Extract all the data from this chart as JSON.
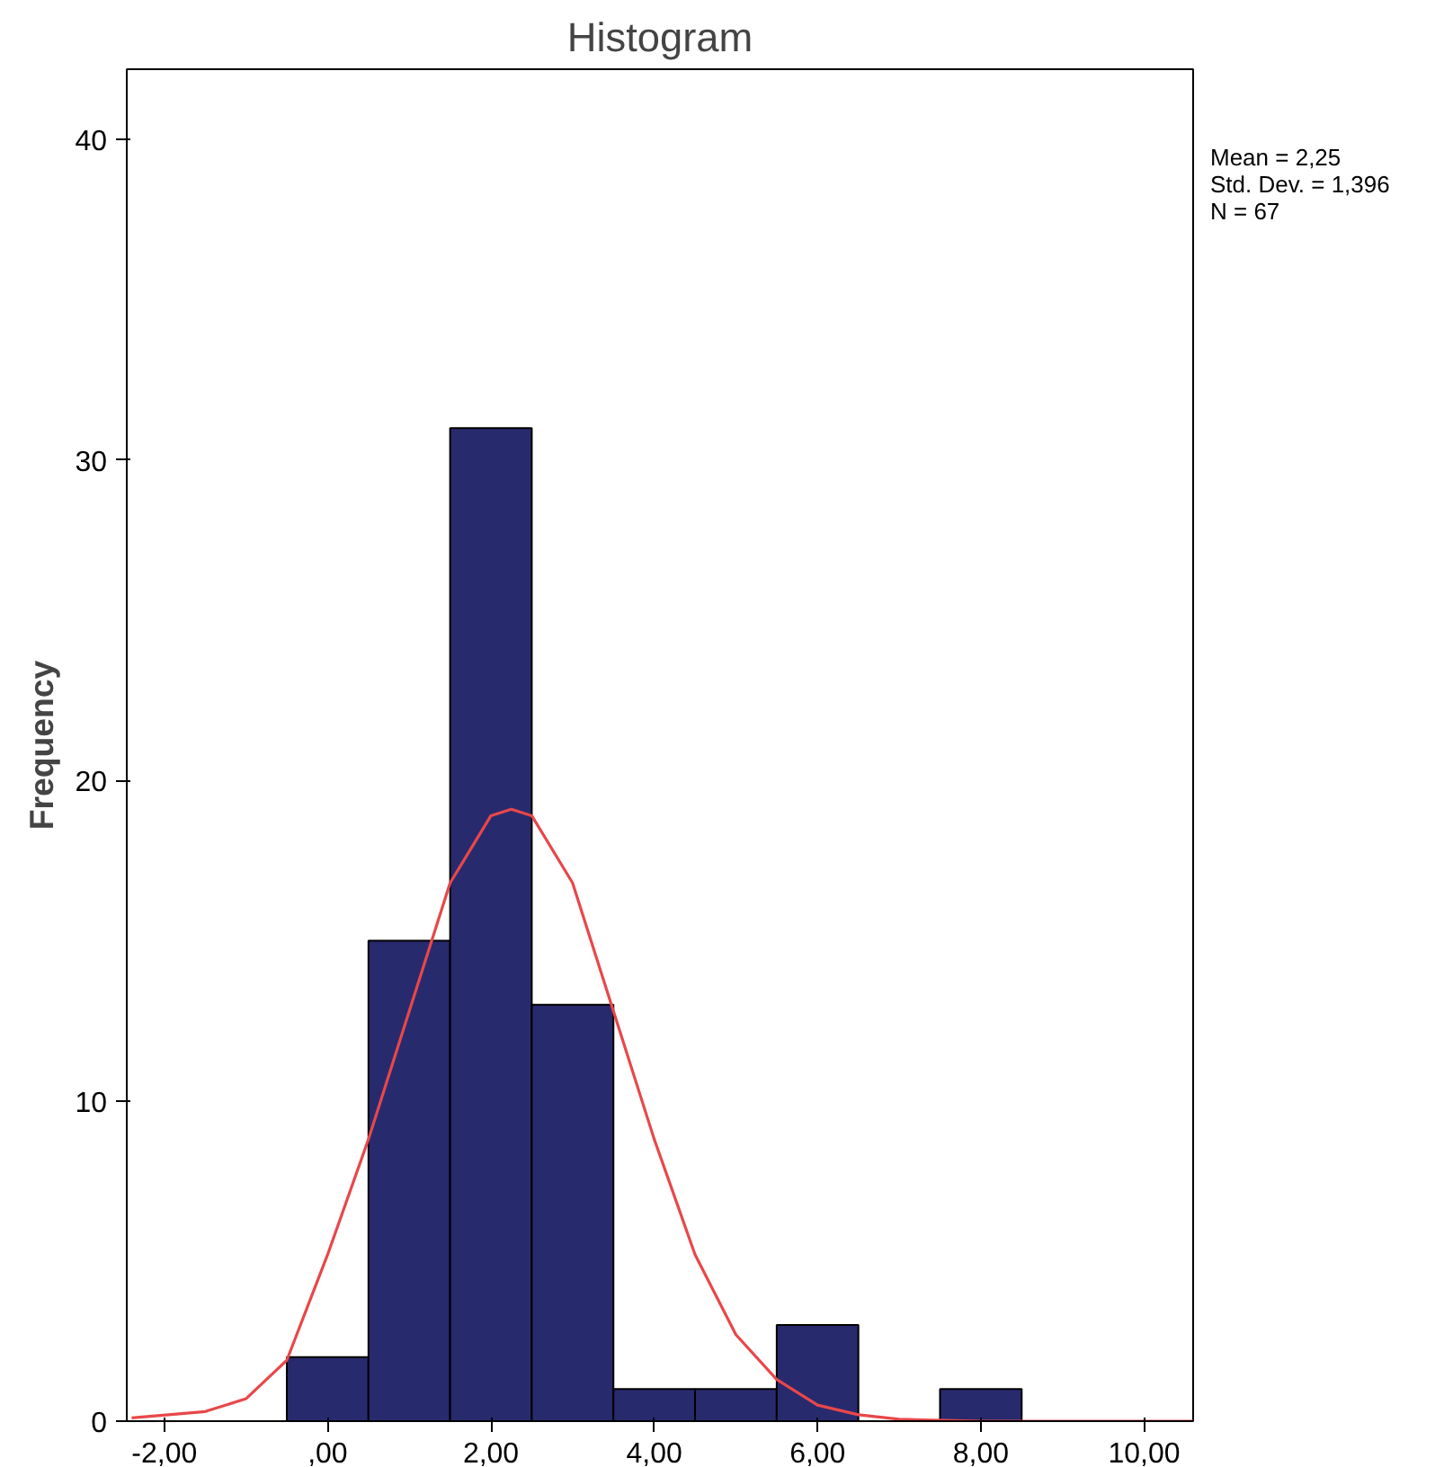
{
  "chart_data": {
    "type": "histogram",
    "title": "Histogram",
    "ylabel": "Frequency",
    "bins": [
      -0.5,
      0.5,
      1.5,
      2.5,
      3.5,
      4.5,
      5.5,
      6.5,
      7.5,
      8.5
    ],
    "values": [
      2,
      15,
      31,
      13,
      1,
      1,
      3,
      0,
      1
    ],
    "color": "#282a6e",
    "series": [
      {
        "type": "line",
        "color": "#e8474a",
        "x": [
          -2.4,
          -1.5,
          -1,
          -0.5,
          0,
          0.5,
          1,
          1.5,
          2,
          2.25,
          2.5,
          3,
          3.5,
          4,
          4.5,
          5,
          5.5,
          6,
          6.5,
          7,
          8,
          9,
          10.6
        ],
        "values": [
          0.1,
          0.3,
          0.7,
          1.9,
          5.2,
          8.8,
          12.8,
          16.8,
          18.9,
          19.1,
          18.9,
          16.8,
          12.8,
          8.8,
          5.2,
          2.7,
          1.3,
          0.5,
          0.2,
          0.06,
          0,
          0,
          0
        ]
      }
    ],
    "xlim": [
      -2.46,
      10.6
    ],
    "ylim": [
      0,
      42.2
    ],
    "xticks": [
      {
        "value": -2,
        "label": "-2,00"
      },
      {
        "value": 0,
        "label": ",00"
      },
      {
        "value": 2,
        "label": "2,00"
      },
      {
        "value": 4,
        "label": "4,00"
      },
      {
        "value": 6,
        "label": "6,00"
      },
      {
        "value": 8,
        "label": "8,00"
      },
      {
        "value": 10,
        "label": "10,00"
      }
    ],
    "yticks": [
      0,
      10,
      20,
      30,
      40
    ],
    "grid": false,
    "annotations": [
      "Mean = 2,25",
      "Std. Dev. = 1,396",
      "N = 67"
    ]
  }
}
